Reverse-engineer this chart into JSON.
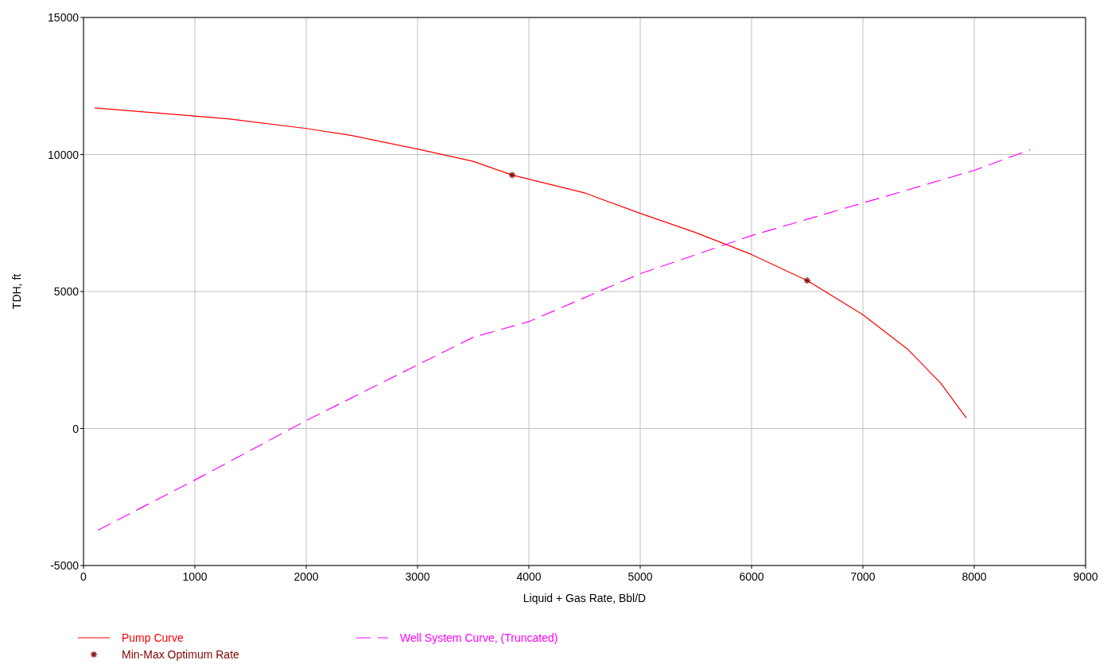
{
  "chart_data": {
    "type": "line",
    "xlabel": "Liquid + Gas Rate, Bbl/D",
    "ylabel": "TDH, ft",
    "xlim": [
      0,
      9000
    ],
    "xticks": [
      0,
      1000,
      2000,
      3000,
      4000,
      5000,
      6000,
      7000,
      8000,
      9000
    ],
    "ylim": [
      -5000,
      15000
    ],
    "yticks": [
      -5000,
      0,
      5000,
      10000,
      15000
    ],
    "grid": true,
    "legend": "bottom",
    "series": [
      {
        "name": "Pump Curve",
        "color": "#ff0000",
        "line_style": "solid",
        "marker": "none",
        "x": [
          100,
          1000,
          1300,
          2000,
          2400,
          3000,
          3500,
          3850,
          4500,
          5000,
          5500,
          6000,
          6500,
          7000,
          7400,
          7700,
          7930
        ],
        "values": [
          11700,
          11400,
          11300,
          10950,
          10700,
          10200,
          9750,
          9250,
          8600,
          7850,
          7150,
          6350,
          5400,
          4150,
          2900,
          1650,
          380
        ]
      },
      {
        "name": "Min-Max Optimum Rate",
        "type": "scatter",
        "color": "#800000",
        "marker": "cross",
        "x": [
          3850,
          6500
        ],
        "values": [
          9250,
          5400
        ]
      },
      {
        "name": "Well System Curve, (Truncated)",
        "color": "#ff00ff",
        "line_style": "dashed",
        "marker": "none",
        "x": [
          130,
          1000,
          2000,
          3000,
          3500,
          4000,
          5000,
          6000,
          7000,
          8000,
          8500
        ],
        "values": [
          -3710,
          -1880,
          290,
          2320,
          3330,
          3900,
          5650,
          7040,
          8230,
          9420,
          10170
        ]
      }
    ]
  }
}
